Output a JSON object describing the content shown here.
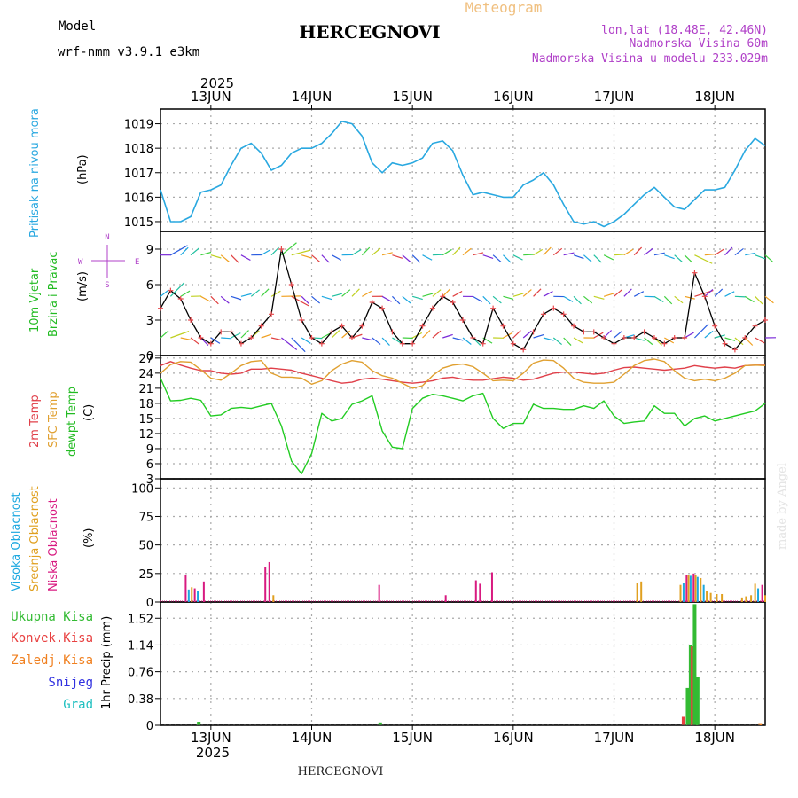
{
  "header": {
    "model_label": "Model",
    "model_name": "wrf-nmm_v3.9.1 e3km",
    "station": "HERCEGNOVI",
    "product": "Meteogram",
    "coords": "lon,lat (18.48E, 42.46N)",
    "altitude": "Nadmorska Visina 60m",
    "model_altitude": "Nadmorska Visina u modelu 233.029m",
    "watermark": "made by Angel",
    "footer_station": "HERCEGNOVI",
    "year": "2025"
  },
  "colors": {
    "pressure": "#29a8e0",
    "wind_speed": "#000000",
    "wind_marker": "#e8484c",
    "temp2m": "#e0404a",
    "sfc_temp": "#e0a030",
    "dewpoint": "#22cc22",
    "cloud_high": "#1ca8e0",
    "cloud_mid": "#e0a020",
    "cloud_low": "#d81a80",
    "rain_total": "#33bb33",
    "rain_conv": "#e84040",
    "rain_frozen": "#f08020",
    "snow": "#3030e0",
    "graupel": "#20c0c0"
  },
  "chart_data": [
    {
      "type": "line",
      "id": "pressure",
      "title": "Pritisak na nivou mora",
      "ylabel": "(hPa)",
      "ylim": [
        1014.6,
        1019.6
      ],
      "yticks": [
        "1015",
        "1016",
        "1017",
        "1018",
        "1019"
      ],
      "x_unit": "day index from 13JUN 00 UTC",
      "x": [
        -0.5,
        -0.4,
        -0.3,
        -0.2,
        -0.1,
        0,
        0.1,
        0.2,
        0.3,
        0.4,
        0.5,
        0.6,
        0.7,
        0.8,
        0.9,
        1,
        1.1,
        1.2,
        1.3,
        1.4,
        1.5,
        1.6,
        1.7,
        1.8,
        1.9,
        2,
        2.1,
        2.2,
        2.3,
        2.4,
        2.5,
        2.6,
        2.7,
        2.8,
        2.9,
        3,
        3.1,
        3.2,
        3.3,
        3.4,
        3.5,
        3.6,
        3.7,
        3.8,
        3.9,
        4,
        4.1,
        4.2,
        4.3,
        4.4,
        4.5,
        4.6,
        4.7,
        4.8,
        4.9,
        5,
        5.1,
        5.2,
        5.3,
        5.4,
        5.5
      ],
      "values": [
        1016.3,
        1015.0,
        1015.0,
        1015.2,
        1016.2,
        1016.3,
        1016.5,
        1017.3,
        1018.0,
        1018.2,
        1017.8,
        1017.1,
        1017.3,
        1017.8,
        1018.0,
        1018.0,
        1018.2,
        1018.6,
        1019.1,
        1019.0,
        1018.5,
        1017.4,
        1017.0,
        1017.4,
        1017.3,
        1017.4,
        1017.6,
        1018.2,
        1018.3,
        1017.9,
        1016.9,
        1016.1,
        1016.2,
        1016.1,
        1016.0,
        1016.0,
        1016.5,
        1016.7,
        1017.0,
        1016.5,
        1015.7,
        1015.0,
        1014.9,
        1015.0,
        1014.8,
        1015.0,
        1015.3,
        1015.7,
        1016.1,
        1016.4,
        1016.0,
        1015.6,
        1015.5,
        1015.9,
        1016.3,
        1016.3,
        1016.4,
        1017.1,
        1017.9,
        1018.4,
        1018.1
      ]
    },
    {
      "type": "line",
      "id": "wind",
      "title": "10m Vjetar Brzina i Pravac",
      "ylabel": "(m/s)",
      "ylim": [
        0,
        10.5
      ],
      "yticks": [
        "0",
        "3",
        "6",
        "9"
      ],
      "compass_top": "N",
      "compass_left": "W",
      "compass_right": "E",
      "compass_bottom": "S",
      "x": [
        -0.5,
        -0.4,
        -0.3,
        -0.2,
        -0.1,
        0,
        0.1,
        0.2,
        0.3,
        0.4,
        0.5,
        0.6,
        0.7,
        0.8,
        0.9,
        1,
        1.1,
        1.2,
        1.3,
        1.4,
        1.5,
        1.6,
        1.7,
        1.8,
        1.9,
        2,
        2.1,
        2.2,
        2.3,
        2.4,
        2.5,
        2.6,
        2.7,
        2.8,
        2.9,
        3,
        3.1,
        3.2,
        3.3,
        3.4,
        3.5,
        3.6,
        3.7,
        3.8,
        3.9,
        4,
        4.1,
        4.2,
        4.3,
        4.4,
        4.5,
        4.6,
        4.7,
        4.8,
        4.9,
        5,
        5.1,
        5.2,
        5.3,
        5.4,
        5.5
      ],
      "values": [
        4.0,
        5.5,
        4.8,
        3.0,
        1.5,
        1.0,
        2.0,
        2.0,
        1.0,
        1.5,
        2.5,
        3.5,
        9.0,
        6.0,
        3.0,
        1.5,
        1.0,
        2.0,
        2.5,
        1.5,
        2.5,
        4.5,
        4.0,
        2.0,
        1.0,
        1.0,
        2.5,
        4.0,
        5.0,
        4.5,
        3.0,
        1.5,
        1.0,
        4.0,
        2.5,
        1.0,
        0.5,
        2.0,
        3.5,
        4.0,
        3.5,
        2.5,
        2.0,
        2.0,
        1.5,
        1.0,
        1.5,
        1.5,
        2.0,
        1.5,
        1.0,
        1.5,
        1.5,
        7.0,
        5.0,
        2.5,
        1.0,
        0.5,
        1.5,
        2.5,
        3.0
      ]
    },
    {
      "type": "line",
      "id": "temperature",
      "title_2m": "2m Temp",
      "title_sfc": "SFC Temp",
      "title_dew": "dewpt Temp",
      "ylabel": "(C)",
      "ylim": [
        3,
        27.5
      ],
      "yticks": [
        "3",
        "6",
        "9",
        "12",
        "15",
        "18",
        "21",
        "24",
        "27"
      ],
      "x": [
        -0.5,
        -0.4,
        -0.3,
        -0.2,
        -0.1,
        0,
        0.1,
        0.2,
        0.3,
        0.4,
        0.5,
        0.6,
        0.7,
        0.8,
        0.9,
        1,
        1.1,
        1.2,
        1.3,
        1.4,
        1.5,
        1.6,
        1.7,
        1.8,
        1.9,
        2,
        2.1,
        2.2,
        2.3,
        2.4,
        2.5,
        2.6,
        2.7,
        2.8,
        2.9,
        3,
        3.1,
        3.2,
        3.3,
        3.4,
        3.5,
        3.6,
        3.7,
        3.8,
        3.9,
        4,
        4.1,
        4.2,
        4.3,
        4.4,
        4.5,
        4.6,
        4.7,
        4.8,
        4.9,
        5,
        5.1,
        5.2,
        5.3,
        5.4,
        5.5
      ],
      "series": [
        {
          "name": "2m Temp",
          "color_key": "temp2m",
          "values": [
            25.5,
            26.3,
            25.6,
            25.0,
            24.5,
            24.5,
            24.0,
            23.8,
            24.0,
            24.8,
            24.8,
            25.0,
            24.8,
            24.6,
            24.0,
            23.5,
            23.0,
            22.5,
            22.0,
            22.2,
            22.8,
            23.0,
            22.8,
            22.5,
            22.2,
            22.0,
            22.2,
            22.5,
            23.0,
            23.2,
            22.8,
            22.6,
            22.6,
            22.9,
            23.2,
            23.0,
            22.6,
            22.8,
            23.4,
            24.0,
            24.2,
            24.2,
            24.0,
            23.8,
            24.0,
            24.6,
            25.1,
            25.2,
            25.0,
            24.8,
            24.6,
            24.8,
            25.0,
            25.5,
            25.2,
            25.0,
            25.2,
            25.0,
            25.5,
            25.6,
            25.6
          ]
        },
        {
          "name": "SFC Temp",
          "color_key": "sfc_temp",
          "values": [
            24.0,
            25.7,
            26.3,
            26.2,
            24.7,
            23.0,
            22.6,
            24.0,
            25.5,
            26.3,
            26.5,
            24.0,
            23.2,
            23.2,
            23.0,
            21.8,
            22.5,
            24.5,
            25.8,
            26.5,
            26.2,
            24.5,
            23.5,
            23.0,
            22.0,
            21.0,
            21.5,
            23.5,
            25.0,
            25.6,
            25.8,
            25.3,
            24.0,
            22.5,
            22.6,
            22.5,
            24.0,
            26.0,
            26.6,
            26.5,
            25.0,
            23.0,
            22.2,
            22.0,
            22.0,
            22.2,
            23.8,
            25.5,
            26.5,
            26.8,
            26.3,
            24.5,
            23.0,
            22.5,
            22.8,
            22.5,
            23.0,
            24.0,
            25.5,
            25.6,
            25.5
          ]
        },
        {
          "name": "dewpt Temp",
          "color_key": "dewpoint",
          "values": [
            23.0,
            18.5,
            18.6,
            19.0,
            18.6,
            15.5,
            15.7,
            17.0,
            17.2,
            17.0,
            17.5,
            18.0,
            13.5,
            6.5,
            4.0,
            8.0,
            16.0,
            14.5,
            15.0,
            17.8,
            18.5,
            19.5,
            12.5,
            9.3,
            9.0,
            17.0,
            19.0,
            19.8,
            19.5,
            19.0,
            18.5,
            19.5,
            20.0,
            15.0,
            13.0,
            14.0,
            14.0,
            17.8,
            17.0,
            17.0,
            16.8,
            16.8,
            17.5,
            17.0,
            18.5,
            15.5,
            14.0,
            14.3,
            14.5,
            17.5,
            16.0,
            16.0,
            13.5,
            15.0,
            15.5,
            14.5,
            15.0,
            15.5,
            16.0,
            16.5,
            18.0
          ]
        }
      ]
    },
    {
      "type": "bar",
      "id": "clouds",
      "title_high": "Visoka Oblacnost",
      "title_mid": "Srednja Oblacnost",
      "title_low": "Niska Oblacnost",
      "ylabel": "(%)",
      "ylim": [
        0,
        108
      ],
      "yticks": [
        "0",
        "25",
        "50",
        "75",
        "100"
      ],
      "bars": [
        {
          "x": -0.25,
          "layer": "low",
          "value": 24
        },
        {
          "x": -0.22,
          "layer": "high",
          "value": 11
        },
        {
          "x": -0.19,
          "layer": "mid",
          "value": 13
        },
        {
          "x": -0.16,
          "layer": "low",
          "value": 12
        },
        {
          "x": -0.13,
          "layer": "high",
          "value": 10
        },
        {
          "x": -0.07,
          "layer": "low",
          "value": 18
        },
        {
          "x": 0.54,
          "layer": "low",
          "value": 31
        },
        {
          "x": 0.58,
          "layer": "low",
          "value": 35
        },
        {
          "x": 0.62,
          "layer": "mid",
          "value": 6
        },
        {
          "x": 1.67,
          "layer": "low",
          "value": 15
        },
        {
          "x": 2.33,
          "layer": "low",
          "value": 6
        },
        {
          "x": 2.63,
          "layer": "low",
          "value": 19
        },
        {
          "x": 2.67,
          "layer": "low",
          "value": 16
        },
        {
          "x": 2.79,
          "layer": "low",
          "value": 26
        },
        {
          "x": 4.23,
          "layer": "mid",
          "value": 17
        },
        {
          "x": 4.27,
          "layer": "mid",
          "value": 18
        },
        {
          "x": 4.66,
          "layer": "mid",
          "value": 15
        },
        {
          "x": 4.69,
          "layer": "high",
          "value": 17
        },
        {
          "x": 4.72,
          "layer": "low",
          "value": 24
        },
        {
          "x": 4.74,
          "layer": "mid",
          "value": 24
        },
        {
          "x": 4.76,
          "layer": "high",
          "value": 23
        },
        {
          "x": 4.79,
          "layer": "low",
          "value": 25
        },
        {
          "x": 4.81,
          "layer": "mid",
          "value": 24
        },
        {
          "x": 4.83,
          "layer": "high",
          "value": 22
        },
        {
          "x": 4.86,
          "layer": "mid",
          "value": 21
        },
        {
          "x": 4.89,
          "layer": "high",
          "value": 15
        },
        {
          "x": 4.92,
          "layer": "mid",
          "value": 10
        },
        {
          "x": 4.96,
          "layer": "mid",
          "value": 8
        },
        {
          "x": 5.02,
          "layer": "mid",
          "value": 7
        },
        {
          "x": 5.07,
          "layer": "mid",
          "value": 7
        },
        {
          "x": 5.27,
          "layer": "mid",
          "value": 4
        },
        {
          "x": 5.31,
          "layer": "mid",
          "value": 5
        },
        {
          "x": 5.36,
          "layer": "mid",
          "value": 6
        },
        {
          "x": 5.4,
          "layer": "mid",
          "value": 16
        },
        {
          "x": 5.43,
          "layer": "high",
          "value": 12
        },
        {
          "x": 5.47,
          "layer": "low",
          "value": 15
        },
        {
          "x": 5.5,
          "layer": "mid",
          "value": 6
        }
      ]
    },
    {
      "type": "bar",
      "id": "precip",
      "title_total": "Ukupna Kisa",
      "title_conv": "Konvek.Kisa",
      "title_frozen": "Zaledj.Kisa",
      "title_snow": "Snijeg",
      "title_graupel": "Grad",
      "ylabel": "1hr Precip (mm)",
      "ylim": [
        0,
        1.75
      ],
      "yticks": [
        "0",
        "0.38",
        "0.76",
        "1.14",
        "1.52"
      ],
      "bars": [
        {
          "x": -0.12,
          "layer": "total",
          "value": 0.05
        },
        {
          "x": 1.68,
          "layer": "total",
          "value": 0.04
        },
        {
          "x": 4.69,
          "layer": "conv",
          "value": 0.12
        },
        {
          "x": 4.73,
          "layer": "total",
          "value": 0.53
        },
        {
          "x": 4.76,
          "layer": "total",
          "value": 1.14
        },
        {
          "x": 4.78,
          "layer": "conv",
          "value": 1.12
        },
        {
          "x": 4.8,
          "layer": "total",
          "value": 1.72
        },
        {
          "x": 4.83,
          "layer": "total",
          "value": 0.68
        },
        {
          "x": 5.45,
          "layer": "frozen",
          "value": 0.03
        }
      ]
    }
  ],
  "axis": {
    "day_labels": [
      "13JUN",
      "14JUN",
      "15JUN",
      "16JUN",
      "17JUN",
      "18JUN"
    ],
    "day_x": [
      0,
      1,
      2,
      3,
      4,
      5
    ],
    "x_range": [
      -0.5,
      5.5
    ]
  }
}
